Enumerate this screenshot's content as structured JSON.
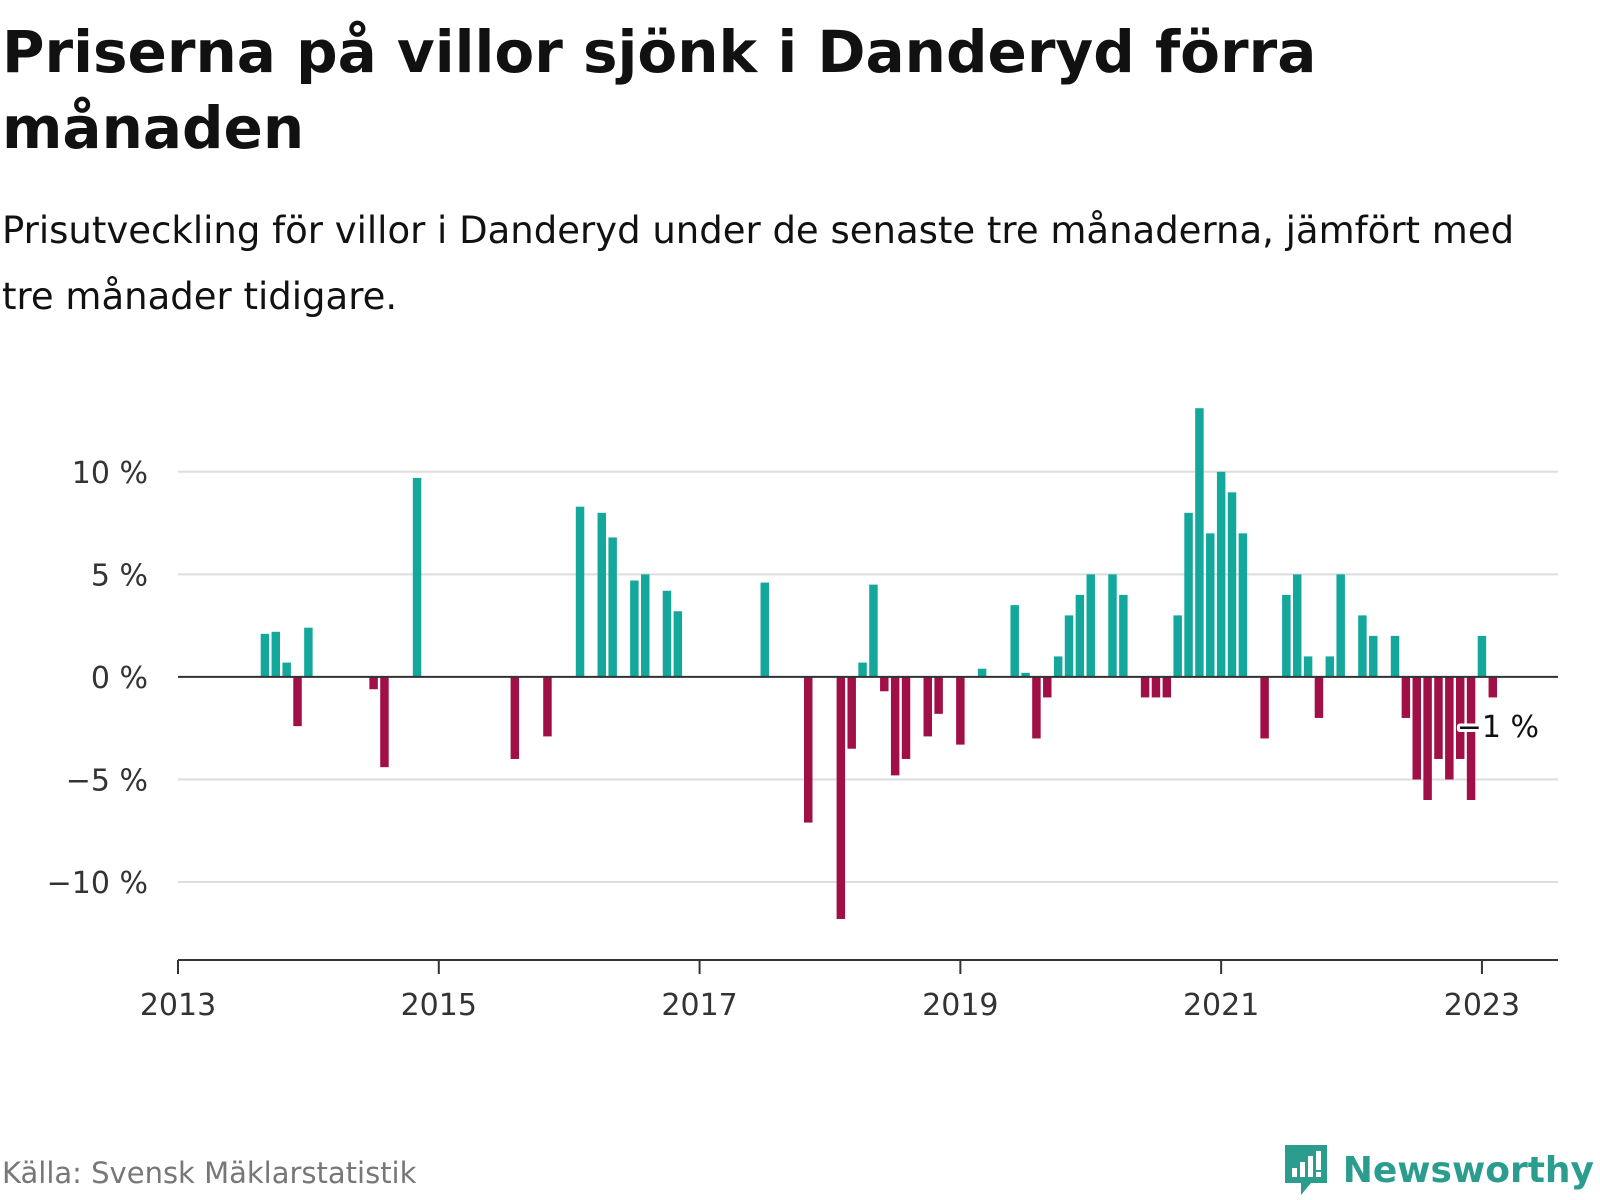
{
  "chart_data": {
    "type": "bar",
    "title": "Priserna på villor sjönk i Danderyd förra månaden",
    "subtitle": "Prisutveckling för villor i Danderyd under de senaste tre månaderna, jämfört med tre månader tidigare.",
    "source": "Källa: Svensk Mäklarstatistik",
    "brand": "Newsworthy",
    "end_label": "−1 %",
    "x_ticks": [
      "2013",
      "2015",
      "2017",
      "2019",
      "2021",
      "2023"
    ],
    "y_ticks": [
      {
        "value": 10,
        "label": "10 %"
      },
      {
        "value": 5,
        "label": "5 %"
      },
      {
        "value": 0,
        "label": "0 %"
      },
      {
        "value": -5,
        "label": "−5 %"
      },
      {
        "value": -10,
        "label": "−10 %"
      }
    ],
    "xlim": [
      "2013-01",
      "2023-08"
    ],
    "ylim": [
      -13.8,
      13.5
    ],
    "grid": true,
    "legend": "none",
    "colors": {
      "positive": "#14a89c",
      "negative": "#a10f47",
      "grid": "#dddddd",
      "axis": "#333333"
    },
    "bars": [
      {
        "date": "2013-09",
        "value": 2.1
      },
      {
        "date": "2013-10",
        "value": 2.2
      },
      {
        "date": "2013-11",
        "value": 0.7
      },
      {
        "date": "2013-12",
        "value": -2.4
      },
      {
        "date": "2014-01",
        "value": 2.4
      },
      {
        "date": "2014-07",
        "value": -0.6
      },
      {
        "date": "2014-08",
        "value": -4.4
      },
      {
        "date": "2014-11",
        "value": 9.7
      },
      {
        "date": "2015-08",
        "value": -4.0
      },
      {
        "date": "2015-11",
        "value": -2.9
      },
      {
        "date": "2016-02",
        "value": 8.3
      },
      {
        "date": "2016-04",
        "value": 8.0
      },
      {
        "date": "2016-05",
        "value": 6.8
      },
      {
        "date": "2016-07",
        "value": 4.7
      },
      {
        "date": "2016-08",
        "value": 5.0
      },
      {
        "date": "2016-10",
        "value": 4.2
      },
      {
        "date": "2016-11",
        "value": 3.2
      },
      {
        "date": "2017-07",
        "value": 4.6
      },
      {
        "date": "2017-11",
        "value": -7.1
      },
      {
        "date": "2018-02",
        "value": -11.8
      },
      {
        "date": "2018-03",
        "value": -3.5
      },
      {
        "date": "2018-04",
        "value": 0.7
      },
      {
        "date": "2018-05",
        "value": 4.5
      },
      {
        "date": "2018-06",
        "value": -0.7
      },
      {
        "date": "2018-07",
        "value": -4.8
      },
      {
        "date": "2018-08",
        "value": -4.0
      },
      {
        "date": "2018-10",
        "value": -2.9
      },
      {
        "date": "2018-11",
        "value": -1.8
      },
      {
        "date": "2019-01",
        "value": -3.3
      },
      {
        "date": "2019-03",
        "value": 0.4
      },
      {
        "date": "2019-06",
        "value": 3.5
      },
      {
        "date": "2019-07",
        "value": 0.2
      },
      {
        "date": "2019-08",
        "value": -3.0
      },
      {
        "date": "2019-09",
        "value": -1.0
      },
      {
        "date": "2019-10",
        "value": 1.0
      },
      {
        "date": "2019-11",
        "value": 3.0
      },
      {
        "date": "2019-12",
        "value": 4.0
      },
      {
        "date": "2020-01",
        "value": 5.0
      },
      {
        "date": "2020-03",
        "value": 5.0
      },
      {
        "date": "2020-04",
        "value": 4.0
      },
      {
        "date": "2020-06",
        "value": -1.0
      },
      {
        "date": "2020-07",
        "value": -1.0
      },
      {
        "date": "2020-08",
        "value": -1.0
      },
      {
        "date": "2020-09",
        "value": 3.0
      },
      {
        "date": "2020-10",
        "value": 8.0
      },
      {
        "date": "2020-11",
        "value": 13.1
      },
      {
        "date": "2020-12",
        "value": 7.0
      },
      {
        "date": "2021-01",
        "value": 10.0
      },
      {
        "date": "2021-02",
        "value": 9.0
      },
      {
        "date": "2021-03",
        "value": 7.0
      },
      {
        "date": "2021-05",
        "value": -3.0
      },
      {
        "date": "2021-07",
        "value": 4.0
      },
      {
        "date": "2021-08",
        "value": 5.0
      },
      {
        "date": "2021-09",
        "value": 1.0
      },
      {
        "date": "2021-10",
        "value": -2.0
      },
      {
        "date": "2021-11",
        "value": 1.0
      },
      {
        "date": "2021-12",
        "value": 5.0
      },
      {
        "date": "2022-02",
        "value": 3.0
      },
      {
        "date": "2022-03",
        "value": 2.0
      },
      {
        "date": "2022-05",
        "value": 2.0
      },
      {
        "date": "2022-06",
        "value": -2.0
      },
      {
        "date": "2022-07",
        "value": -5.0
      },
      {
        "date": "2022-08",
        "value": -6.0
      },
      {
        "date": "2022-09",
        "value": -4.0
      },
      {
        "date": "2022-10",
        "value": -5.0
      },
      {
        "date": "2022-11",
        "value": -4.0
      },
      {
        "date": "2022-12",
        "value": -6.0
      },
      {
        "date": "2023-01",
        "value": 2.0
      },
      {
        "date": "2023-02",
        "value": -1.0
      }
    ]
  }
}
